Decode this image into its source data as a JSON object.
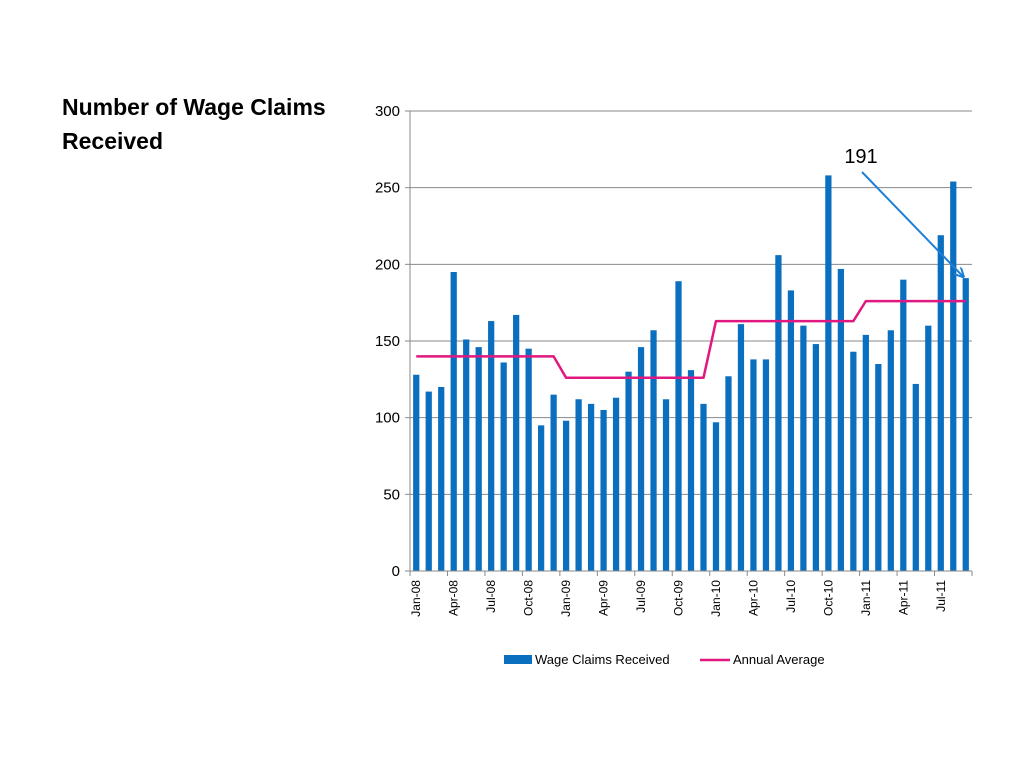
{
  "page": {
    "title": "Number of Wage Claims Received"
  },
  "chart_data": {
    "type": "bar",
    "title": "Number of Wage Claims Received",
    "xlabel": "",
    "ylabel": "",
    "ylim": [
      0,
      300
    ],
    "yticks": [
      0,
      50,
      100,
      150,
      200,
      250,
      300
    ],
    "grid": true,
    "legend_position": "bottom",
    "categories": [
      "Jan-08",
      "Feb-08",
      "Mar-08",
      "Apr-08",
      "May-08",
      "Jun-08",
      "Jul-08",
      "Aug-08",
      "Sep-08",
      "Oct-08",
      "Nov-08",
      "Dec-08",
      "Jan-09",
      "Feb-09",
      "Mar-09",
      "Apr-09",
      "May-09",
      "Jun-09",
      "Jul-09",
      "Aug-09",
      "Sep-09",
      "Oct-09",
      "Nov-09",
      "Dec-09",
      "Jan-10",
      "Feb-10",
      "Mar-10",
      "Apr-10",
      "May-10",
      "Jun-10",
      "Jul-10",
      "Aug-10",
      "Sep-10",
      "Oct-10",
      "Nov-10",
      "Dec-10",
      "Jan-11",
      "Feb-11",
      "Mar-11",
      "Apr-11",
      "May-11",
      "Jun-11",
      "Jul-11",
      "Aug-11",
      "Sep-11"
    ],
    "xtick_labels": [
      "Jan-08",
      "Apr-08",
      "Jul-08",
      "Oct-08",
      "Jan-09",
      "Apr-09",
      "Jul-09",
      "Oct-09",
      "Jan-10",
      "Apr-10",
      "Jul-10",
      "Oct-10",
      "Jan-11",
      "Apr-11",
      "Jul-11"
    ],
    "series": [
      {
        "name": "Wage Claims Received",
        "kind": "bar",
        "color": "#0B6FBF",
        "values": [
          128,
          117,
          120,
          195,
          151,
          146,
          163,
          136,
          167,
          145,
          95,
          115,
          98,
          112,
          109,
          105,
          113,
          130,
          146,
          157,
          112,
          189,
          131,
          109,
          97,
          127,
          161,
          138,
          138,
          206,
          183,
          160,
          148,
          258,
          197,
          143,
          154,
          135,
          157,
          190,
          122,
          160,
          219,
          254,
          191
        ]
      },
      {
        "name": "Annual Average",
        "kind": "line",
        "color": "#E0187F",
        "values": [
          140,
          140,
          140,
          140,
          140,
          140,
          140,
          140,
          140,
          140,
          140,
          140,
          126,
          126,
          126,
          126,
          126,
          126,
          126,
          126,
          126,
          126,
          126,
          126,
          163,
          163,
          163,
          163,
          163,
          163,
          163,
          163,
          163,
          163,
          163,
          163,
          176,
          176,
          176,
          176,
          176,
          176,
          176,
          176,
          176
        ]
      }
    ],
    "annotations": [
      {
        "text": "191",
        "target_category": "Sep-11",
        "target_value": 191,
        "color": "#1E7FD6"
      }
    ]
  }
}
